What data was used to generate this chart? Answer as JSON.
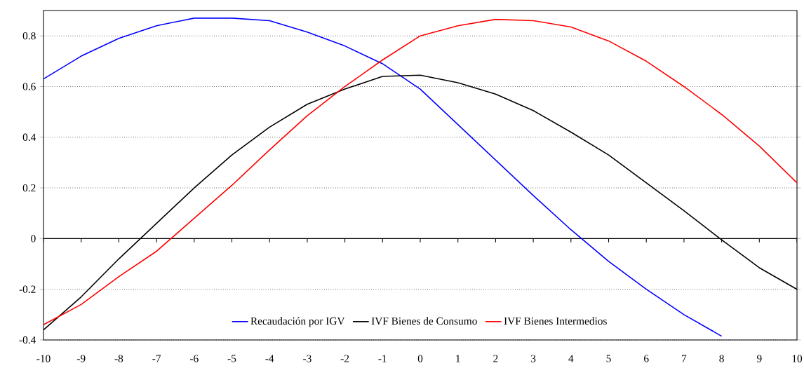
{
  "chart_data": {
    "type": "line",
    "x": [
      -10,
      -9,
      -8,
      -7,
      -6,
      -5,
      -4,
      -3,
      -2,
      -1,
      0,
      1,
      2,
      3,
      4,
      5,
      6,
      7,
      8,
      9,
      10
    ],
    "series": [
      {
        "name": "Recaudación por IGV",
        "color": "#0000ff",
        "values": [
          0.63,
          0.72,
          0.79,
          0.84,
          0.87,
          0.87,
          0.86,
          0.815,
          0.76,
          0.69,
          0.59,
          0.45,
          0.31,
          0.17,
          0.035,
          -0.09,
          -0.2,
          -0.3,
          -0.385,
          null,
          null
        ]
      },
      {
        "name": "IVF Bienes de Consumo",
        "color": "#000000",
        "values": [
          -0.36,
          -0.23,
          -0.08,
          0.06,
          0.2,
          0.33,
          0.44,
          0.53,
          0.59,
          0.64,
          0.645,
          0.615,
          0.57,
          0.505,
          0.42,
          0.33,
          0.22,
          0.11,
          -0.005,
          -0.115,
          -0.2
        ]
      },
      {
        "name": "IVF Bienes Intermedios",
        "color": "#ff0000",
        "values": [
          -0.34,
          -0.26,
          -0.15,
          -0.05,
          0.08,
          0.21,
          0.35,
          0.485,
          0.6,
          0.705,
          0.8,
          0.84,
          0.865,
          0.86,
          0.835,
          0.78,
          0.7,
          0.6,
          0.49,
          0.365,
          0.22
        ]
      }
    ],
    "xlim": [
      -10,
      10
    ],
    "xticks": [
      -10,
      -9,
      -8,
      -7,
      -6,
      -5,
      -4,
      -3,
      -2,
      -1,
      0,
      1,
      2,
      3,
      4,
      5,
      6,
      7,
      8,
      9,
      10
    ],
    "ylim": [
      -0.4,
      0.9
    ],
    "yticks": [
      -0.4,
      -0.2,
      0,
      0.2,
      0.4,
      0.6,
      0.8
    ],
    "grid": "y",
    "legend": "bottom",
    "marker": "none",
    "line_style": "solid"
  }
}
